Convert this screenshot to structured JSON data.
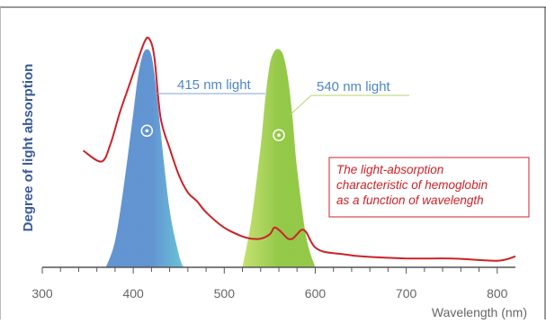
{
  "chart_data": {
    "type": "area",
    "title": "",
    "xlabel": "Wavelength (nm)",
    "ylabel": "Degree of light absorption",
    "xlim": [
      300,
      820
    ],
    "ylim": [
      0,
      1.05
    ],
    "x_ticks": [
      300,
      400,
      500,
      600,
      700,
      800
    ],
    "x_tick_labels": [
      "300",
      "400",
      "500",
      "600",
      "700",
      "800"
    ],
    "x_minor_step": 20,
    "grid": false,
    "series": [
      {
        "name": "415 nm light",
        "kind": "band",
        "color": "#5a8fd0",
        "color_light": "#62c0d6",
        "x": [
          370,
          380,
          390,
          400,
          405,
          410,
          415,
          420,
          425,
          430,
          440,
          450,
          455
        ],
        "y": [
          0,
          0.12,
          0.38,
          0.7,
          0.86,
          0.96,
          0.99,
          0.96,
          0.82,
          0.62,
          0.26,
          0.06,
          0
        ]
      },
      {
        "name": "540 nm light",
        "kind": "band",
        "color": "#8ec63f",
        "color_light": "#c3e06b",
        "x": [
          520,
          530,
          540,
          545,
          550,
          555,
          560,
          565,
          570,
          575,
          580,
          590,
          600
        ],
        "y": [
          0,
          0.22,
          0.55,
          0.76,
          0.92,
          0.98,
          0.99,
          0.96,
          0.86,
          0.68,
          0.45,
          0.14,
          0
        ]
      },
      {
        "name": "The light-absorption characteristic of hemoglobin as a function of wavelength",
        "kind": "line",
        "color": "#cc2229",
        "x": [
          345,
          365,
          375,
          385,
          395,
          405,
          412,
          417,
          423,
          430,
          440,
          450,
          460,
          470,
          480,
          500,
          520,
          530,
          540,
          550,
          555,
          560,
          565,
          570,
          575,
          580,
          585,
          590,
          595,
          600,
          610,
          630,
          650,
          700,
          750,
          800,
          820
        ],
        "y": [
          0.53,
          0.48,
          0.56,
          0.7,
          0.82,
          0.94,
          1.02,
          1.04,
          0.96,
          0.68,
          0.54,
          0.42,
          0.34,
          0.3,
          0.25,
          0.18,
          0.14,
          0.13,
          0.13,
          0.15,
          0.18,
          0.17,
          0.15,
          0.13,
          0.13,
          0.15,
          0.17,
          0.16,
          0.12,
          0.09,
          0.07,
          0.06,
          0.05,
          0.04,
          0.04,
          0.03,
          0.05
        ]
      }
    ],
    "annotations": {
      "band1": {
        "label": "415 nm light",
        "color": "#4d86c6",
        "leader_color": "#7fa6da"
      },
      "band2": {
        "label": "540 nm light",
        "color": "#4d86c6",
        "leader_color": "#b3d66a"
      },
      "curve": {
        "lines": [
          "The light-absorption",
          "characteristic of hemoglobin",
          "as a function of wavelength"
        ],
        "color": "#cc2229"
      }
    },
    "colors": {
      "axis": "#555555",
      "ylabel": "#3a5a9a",
      "xlabel": "#666666",
      "tick_label": "#666666",
      "border": "#333333"
    }
  }
}
